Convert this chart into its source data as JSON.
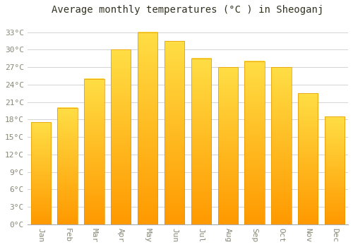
{
  "title": "Average monthly temperatures (°C ) in Sheoganj",
  "months": [
    "Jan",
    "Feb",
    "Mar",
    "Apr",
    "May",
    "Jun",
    "Jul",
    "Aug",
    "Sep",
    "Oct",
    "Nov",
    "Dec"
  ],
  "temperatures": [
    17.5,
    20.0,
    25.0,
    30.0,
    33.0,
    31.5,
    28.5,
    27.0,
    28.0,
    27.0,
    22.5,
    18.5
  ],
  "bar_color_top": "#FFC107",
  "bar_color_bottom": "#FF9800",
  "bar_edge_color": "#E59400",
  "background_color": "#FFFFFF",
  "grid_color": "#CCCCCC",
  "text_color": "#888877",
  "title_color": "#333322",
  "ylim": [
    0,
    35
  ],
  "yticks": [
    0,
    3,
    6,
    9,
    12,
    15,
    18,
    21,
    24,
    27,
    30,
    33
  ],
  "title_fontsize": 10,
  "tick_fontsize": 8
}
